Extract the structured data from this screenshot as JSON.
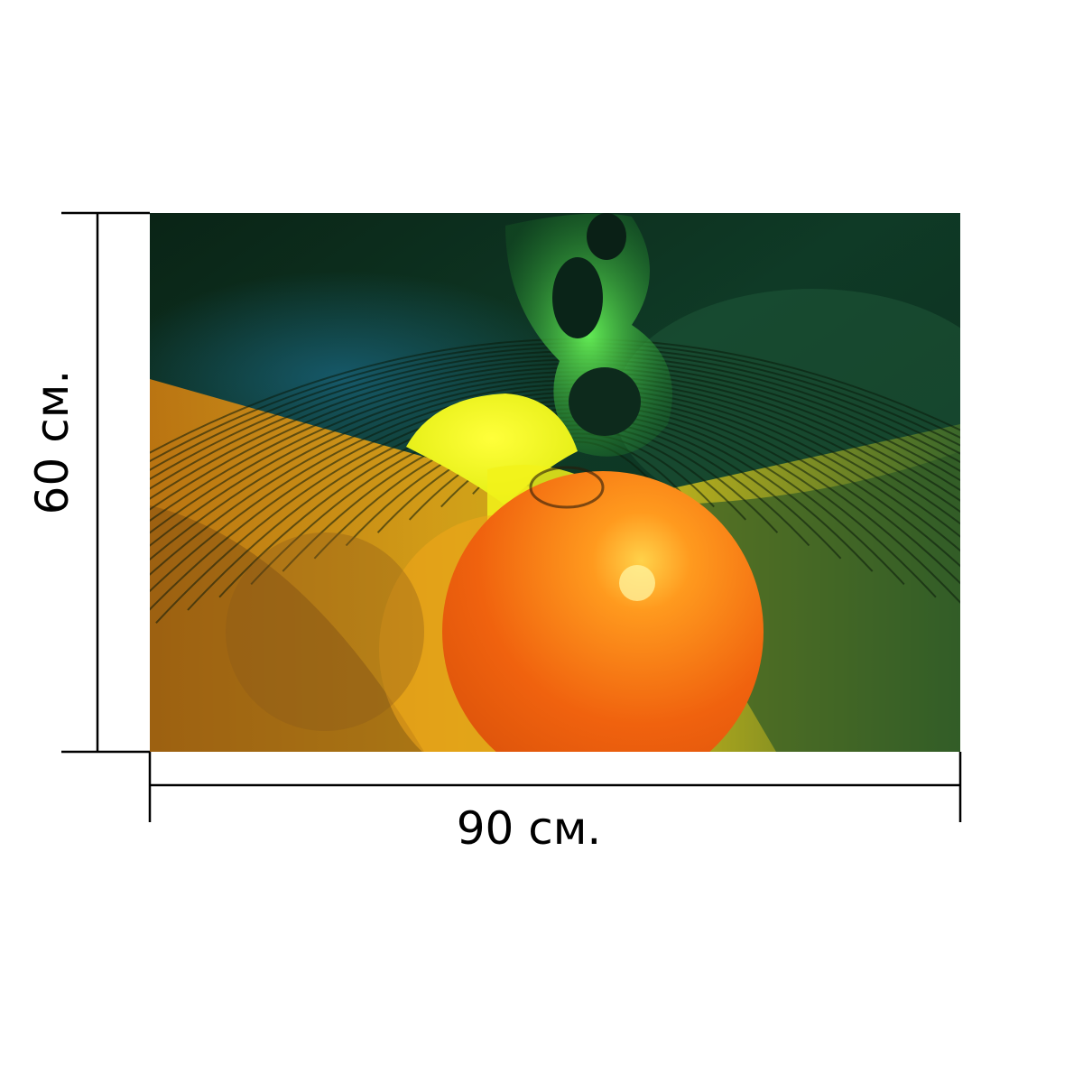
{
  "artwork": {
    "description_icon": "abstract-fractal-artwork",
    "palette": {
      "dark_green": "#0c2a1a",
      "green": "#2fbf3a",
      "yellow": "#f2f21a",
      "orange": "#f28a12",
      "deep_orange": "#e8550c"
    }
  },
  "dimensions": {
    "width_label": "90 см.",
    "height_label": "60 см."
  },
  "line_color": "#000000"
}
